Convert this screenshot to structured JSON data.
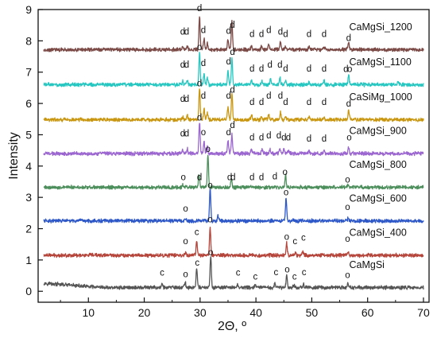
{
  "chart_data": {
    "type": "line",
    "xlabel": "2Θ, º",
    "ylabel": "Intensity",
    "xlim": [
      1,
      71
    ],
    "ylim": [
      -0.35,
      9
    ],
    "xticks": [
      10,
      20,
      30,
      40,
      50,
      60,
      70
    ],
    "yticks": [
      0,
      1,
      2,
      3,
      4,
      5,
      6,
      7,
      8,
      9
    ],
    "grid": false,
    "legend": "none",
    "series": [
      {
        "name": "CaMgSi",
        "color": "#555555",
        "baseline": 0.12,
        "peaks": [
          [
            23.2,
            0.12
          ],
          [
            27.3,
            0.18
          ],
          [
            29.4,
            0.62
          ],
          [
            31.9,
            1.0
          ],
          [
            36.7,
            0.1
          ],
          [
            39.9,
            0.08
          ],
          [
            43.4,
            0.12
          ],
          [
            45.5,
            0.4
          ],
          [
            46.8,
            0.1
          ],
          [
            48.5,
            0.12
          ],
          [
            56.5,
            0.14
          ]
        ],
        "marks": [
          [
            "c",
            23.2,
            0.5
          ],
          [
            "o",
            27.4,
            0.45
          ],
          [
            "c",
            29.5,
            0.82
          ],
          [
            "o",
            31.9,
            1.15
          ],
          [
            "c",
            36.8,
            0.5
          ],
          [
            "c",
            39.9,
            0.38
          ],
          [
            "c",
            43.6,
            0.52
          ],
          [
            "o",
            45.6,
            0.6
          ],
          [
            "c",
            46.9,
            0.38
          ],
          [
            "c",
            48.6,
            0.52
          ],
          [
            "o",
            56.4,
            0.42
          ]
        ]
      },
      {
        "name": "CaMgSi_400",
        "color": "#b5443a",
        "baseline": 1.15,
        "peaks": [
          [
            27.4,
            0.1
          ],
          [
            29.4,
            0.45
          ],
          [
            31.8,
            0.9
          ],
          [
            45.5,
            0.38
          ],
          [
            47.1,
            0.08
          ],
          [
            48.4,
            0.1
          ],
          [
            56.5,
            0.08
          ]
        ],
        "marks": [
          [
            "o",
            27.4,
            1.5
          ],
          [
            "c",
            29.4,
            1.8
          ],
          [
            "o",
            31.8,
            2.2
          ],
          [
            "o",
            45.5,
            1.65
          ],
          [
            "c",
            47.0,
            1.5
          ],
          [
            "c",
            48.5,
            1.62
          ],
          [
            "o",
            56.4,
            1.58
          ]
        ]
      },
      {
        "name": "CaMgSi_600",
        "color": "#2e58c8",
        "baseline": 2.25,
        "peaks": [
          [
            27.4,
            0.08
          ],
          [
            31.8,
            1.05
          ],
          [
            33.2,
            0.15
          ],
          [
            45.4,
            0.75
          ],
          [
            56.5,
            0.08
          ]
        ],
        "marks": [
          [
            "o",
            27.4,
            2.55
          ],
          [
            "o",
            31.8,
            3.3
          ],
          [
            "o",
            45.4,
            3.07
          ],
          [
            "o",
            56.4,
            2.6
          ]
        ]
      },
      {
        "name": "CaMgSi_800",
        "color": "#4d8f5c",
        "baseline": 3.32,
        "peaks": [
          [
            26.9,
            0.06
          ],
          [
            29.8,
            0.4
          ],
          [
            31.4,
            1.0
          ],
          [
            35.6,
            0.25
          ],
          [
            45.3,
            0.4
          ],
          [
            56.5,
            0.08
          ]
        ],
        "marks": [
          [
            "o",
            27.0,
            3.55
          ],
          [
            "d",
            29.9,
            3.55
          ],
          [
            "o",
            31.4,
            4.45
          ],
          [
            "d",
            35.3,
            3.55
          ],
          [
            "d",
            35.9,
            3.55
          ],
          [
            "d",
            39.3,
            3.55
          ],
          [
            "d",
            41.0,
            3.55
          ],
          [
            "d",
            43.4,
            3.57
          ],
          [
            "o",
            45.2,
            3.72
          ],
          [
            "o",
            56.4,
            3.48
          ]
        ]
      },
      {
        "name": "CaMgSi_900",
        "color": "#9b66d0",
        "baseline": 4.4,
        "peaks": [
          [
            26.9,
            0.1
          ],
          [
            27.7,
            0.15
          ],
          [
            29.9,
            1.0
          ],
          [
            30.7,
            0.4
          ],
          [
            31.3,
            0.2
          ],
          [
            35.0,
            0.4
          ],
          [
            35.7,
            0.6
          ],
          [
            39.2,
            0.12
          ],
          [
            41.1,
            0.12
          ],
          [
            42.5,
            0.15
          ],
          [
            44.3,
            0.15
          ],
          [
            45.0,
            0.15
          ],
          [
            45.8,
            0.1
          ],
          [
            49.5,
            0.1
          ],
          [
            52.2,
            0.12
          ],
          [
            56.6,
            0.2
          ]
        ],
        "marks": [
          [
            "d",
            26.9,
            4.95
          ],
          [
            "d",
            27.6,
            4.95
          ],
          [
            "d",
            29.9,
            5.45
          ],
          [
            "o",
            30.6,
            4.98
          ],
          [
            "d",
            35.1,
            4.98
          ],
          [
            "d",
            35.8,
            5.22
          ],
          [
            "d",
            39.3,
            4.82
          ],
          [
            "d",
            41.0,
            4.82
          ],
          [
            "d",
            42.3,
            4.88
          ],
          [
            "d",
            44.1,
            4.88
          ],
          [
            "d",
            45.0,
            4.82
          ],
          [
            "d",
            45.8,
            4.82
          ],
          [
            "d",
            49.5,
            4.78
          ],
          [
            "d",
            52.2,
            4.78
          ],
          [
            "o",
            56.7,
            4.82
          ]
        ]
      },
      {
        "name": "CaSiMg_1000",
        "color": "#c9960f",
        "baseline": 5.48,
        "peaks": [
          [
            26.9,
            0.1
          ],
          [
            27.7,
            0.15
          ],
          [
            29.9,
            1.0
          ],
          [
            30.7,
            0.35
          ],
          [
            31.3,
            0.2
          ],
          [
            35.0,
            0.4
          ],
          [
            35.7,
            0.85
          ],
          [
            39.2,
            0.15
          ],
          [
            41.0,
            0.12
          ],
          [
            42.3,
            0.18
          ],
          [
            44.4,
            0.22
          ],
          [
            45.3,
            0.1
          ],
          [
            49.5,
            0.08
          ],
          [
            52.2,
            0.1
          ],
          [
            56.6,
            0.3
          ]
        ],
        "marks": [
          [
            "d",
            26.9,
            6.05
          ],
          [
            "d",
            27.6,
            6.05
          ],
          [
            "d",
            29.9,
            6.55
          ],
          [
            "d",
            30.6,
            6.15
          ],
          [
            "d",
            35.1,
            6.15
          ],
          [
            "d",
            35.8,
            6.35
          ],
          [
            "d",
            39.3,
            5.95
          ],
          [
            "d",
            41.0,
            5.95
          ],
          [
            "d",
            42.3,
            6.15
          ],
          [
            "d",
            44.4,
            6.15
          ],
          [
            "d",
            45.3,
            5.95
          ],
          [
            "d",
            49.5,
            5.95
          ],
          [
            "d",
            52.2,
            5.95
          ],
          [
            "d",
            56.6,
            5.9
          ]
        ]
      },
      {
        "name": "CaMgSi_1100",
        "color": "#27c7c1",
        "baseline": 6.6,
        "peaks": [
          [
            26.9,
            0.1
          ],
          [
            27.7,
            0.15
          ],
          [
            29.9,
            1.0
          ],
          [
            30.7,
            0.35
          ],
          [
            31.3,
            0.2
          ],
          [
            35.0,
            0.45
          ],
          [
            35.7,
            0.85
          ],
          [
            39.2,
            0.15
          ],
          [
            41.1,
            0.15
          ],
          [
            42.6,
            0.18
          ],
          [
            44.3,
            0.2
          ],
          [
            45.3,
            0.1
          ],
          [
            49.5,
            0.08
          ],
          [
            52.2,
            0.12
          ],
          [
            56.6,
            0.3
          ],
          [
            65.5,
            0.1
          ]
        ],
        "marks": [
          [
            "d",
            26.9,
            7.15
          ],
          [
            "d",
            27.6,
            7.15
          ],
          [
            "o",
            29.9,
            7.7
          ],
          [
            "d",
            30.6,
            7.2
          ],
          [
            "d",
            35.1,
            7.25
          ],
          [
            "d",
            35.8,
            7.55
          ],
          [
            "d",
            39.3,
            7.02
          ],
          [
            "d",
            41.0,
            7.02
          ],
          [
            "d",
            42.5,
            7.15
          ],
          [
            "d",
            44.3,
            7.15
          ],
          [
            "d",
            45.3,
            7.02
          ],
          [
            "d",
            49.5,
            7.02
          ],
          [
            "d",
            52.2,
            7.02
          ],
          [
            "d",
            56.1,
            7.0
          ],
          [
            "o",
            56.8,
            7.0
          ]
        ]
      },
      {
        "name": "CaMgSi_1200",
        "color": "#7b4a46",
        "baseline": 7.72,
        "peaks": [
          [
            26.9,
            0.08
          ],
          [
            27.7,
            0.12
          ],
          [
            29.9,
            1.05
          ],
          [
            30.7,
            0.35
          ],
          [
            31.3,
            0.2
          ],
          [
            35.0,
            0.3
          ],
          [
            35.7,
            0.9
          ],
          [
            39.2,
            0.1
          ],
          [
            41.0,
            0.1
          ],
          [
            42.3,
            0.15
          ],
          [
            44.4,
            0.25
          ],
          [
            45.3,
            0.1
          ],
          [
            49.5,
            0.08
          ],
          [
            52.2,
            0.1
          ],
          [
            56.6,
            0.25
          ]
        ],
        "marks": [
          [
            "d",
            26.9,
            8.2
          ],
          [
            "d",
            27.6,
            8.2
          ],
          [
            "d",
            29.9,
            8.95
          ],
          [
            "d",
            30.6,
            8.25
          ],
          [
            "d",
            35.1,
            8.22
          ],
          [
            "d",
            35.8,
            8.42
          ],
          [
            "d",
            39.3,
            8.12
          ],
          [
            "d",
            41.0,
            8.12
          ],
          [
            "d",
            42.3,
            8.25
          ],
          [
            "d",
            44.4,
            8.2
          ],
          [
            "d",
            45.3,
            8.12
          ],
          [
            "d",
            49.5,
            8.12
          ],
          [
            "d",
            52.2,
            8.12
          ],
          [
            "d",
            56.6,
            8.0
          ]
        ]
      }
    ]
  }
}
